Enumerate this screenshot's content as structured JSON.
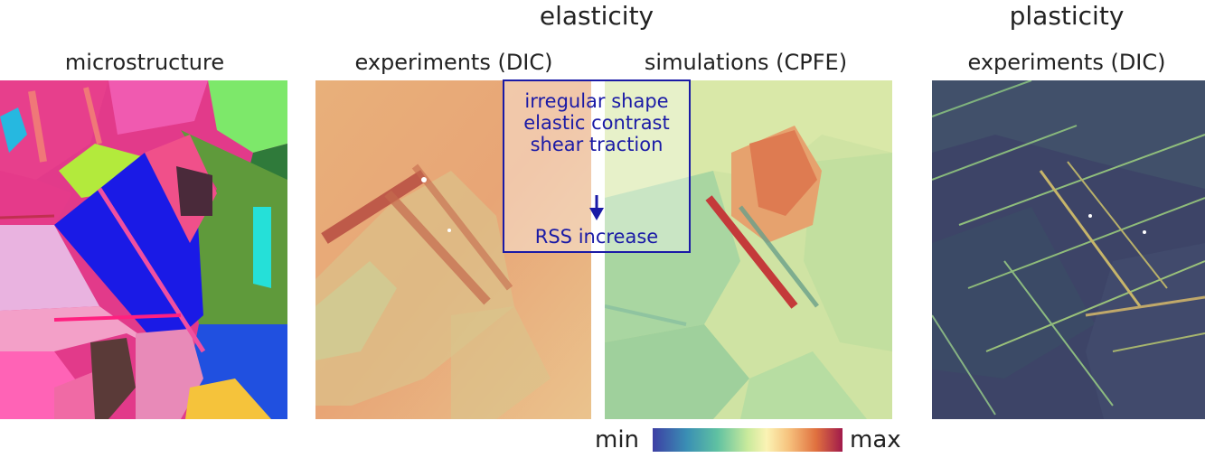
{
  "headers": {
    "elasticity": "elasticity",
    "plasticity": "plasticity"
  },
  "panel_titles": {
    "microstructure": "microstructure",
    "experiments_elastic": "experiments (DIC)",
    "simulations": "simulations (CPFE)",
    "experiments_plastic": "experiments (DIC)"
  },
  "callout": {
    "lines": [
      "irregular shape",
      "elastic contrast",
      "shear traction"
    ],
    "result": "RSS increase",
    "color": "#1a1aa6"
  },
  "colorbar": {
    "min_label": "min",
    "max_label": "max",
    "colors": [
      "#3d3fa4",
      "#3a8fb4",
      "#5fc1a2",
      "#c9ea9c",
      "#fbf3b4",
      "#f6c07c",
      "#e0713f",
      "#a11a4b"
    ]
  }
}
